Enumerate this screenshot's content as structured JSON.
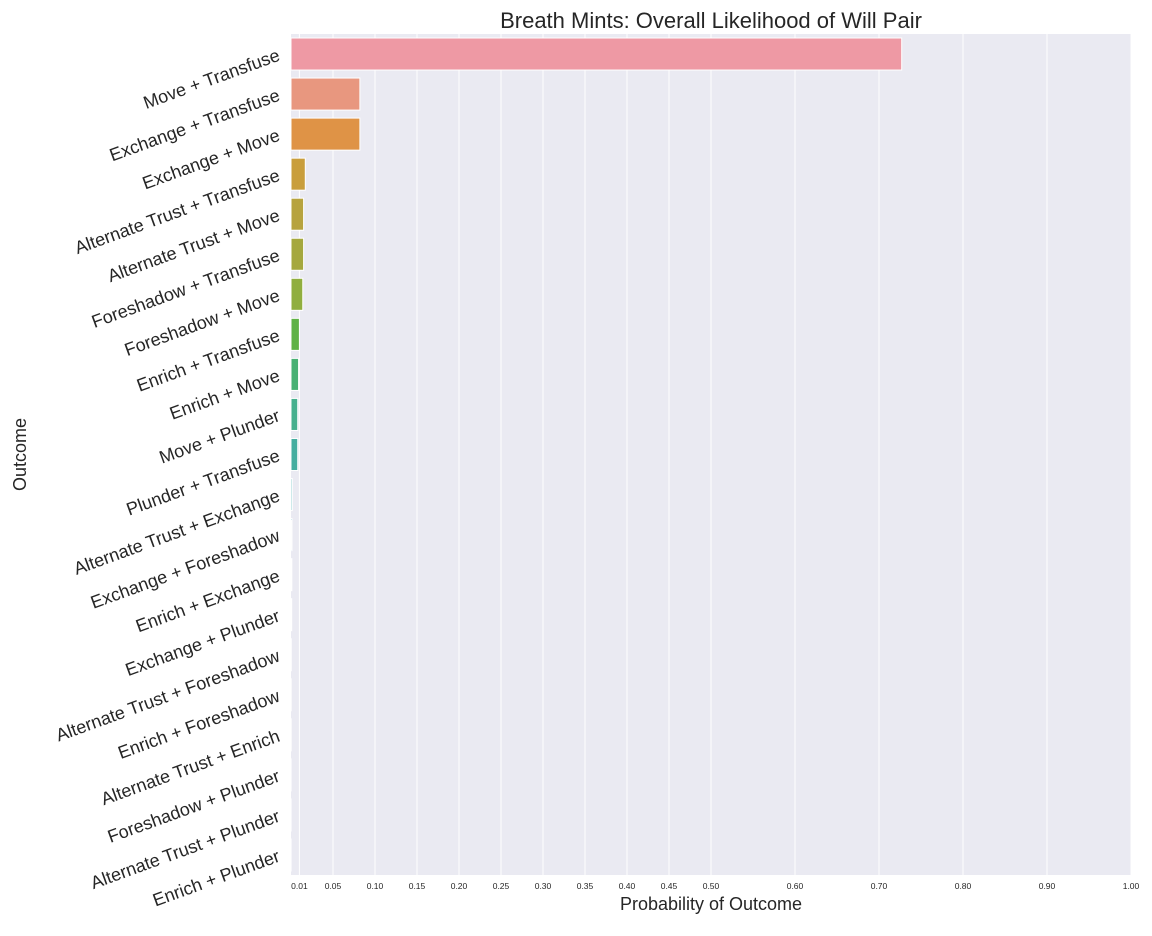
{
  "chart_data": {
    "type": "bar",
    "orientation": "horizontal",
    "title": "Breath Mints: Overall Likelihood of Will Pair",
    "xlabel": "Probability of Outcome",
    "ylabel": "Outcome",
    "xlim": [
      0,
      1.0
    ],
    "xticks": [
      0.01,
      0.05,
      0.1,
      0.15,
      0.2,
      0.25,
      0.3,
      0.35,
      0.4,
      0.45,
      0.5,
      0.6,
      0.7,
      0.8,
      0.9,
      1.0
    ],
    "xtick_labels": [
      "0.01",
      "0.05",
      "0.10",
      "0.15",
      "0.20",
      "0.25",
      "0.30",
      "0.35",
      "0.40",
      "0.45",
      "0.50",
      "0.60",
      "0.70",
      "0.80",
      "0.90",
      "1.00"
    ],
    "grid": true,
    "background_color": "#eaeaf2",
    "categories": [
      "Move + Transfuse",
      "Exchange + Transfuse",
      "Exchange + Move",
      "Alternate Trust + Transfuse",
      "Alternate Trust + Move",
      "Foreshadow + Transfuse",
      "Foreshadow + Move",
      "Enrich + Transfuse",
      "Enrich + Move",
      "Move + Plunder",
      "Plunder + Transfuse",
      "Alternate Trust + Exchange",
      "Exchange + Foreshadow",
      "Enrich + Exchange",
      "Exchange + Plunder",
      "Alternate Trust + Foreshadow",
      "Enrich + Foreshadow",
      "Alternate Trust + Enrich",
      "Foreshadow + Plunder",
      "Alternate Trust + Plunder",
      "Enrich + Plunder"
    ],
    "values": [
      0.727,
      0.082,
      0.082,
      0.017,
      0.015,
      0.015,
      0.014,
      0.01,
      0.009,
      0.008,
      0.008,
      0.0015,
      0.0012,
      0.001,
      0.0008,
      0.0003,
      0.0002,
      0.0002,
      0.0001,
      0.0001,
      0.0001
    ],
    "colors": [
      "#ee99a4",
      "#e8977f",
      "#df9346",
      "#c99e3c",
      "#b7a33e",
      "#a5a83e",
      "#90ae3f",
      "#5fb246",
      "#49b174",
      "#47b08e",
      "#46aea0",
      "#44aeb2",
      "#45aec6",
      "#4aaedd",
      "#6aacf0",
      "#93a6f5",
      "#b79bf2",
      "#d38ff0",
      "#e888e6",
      "#f187d0",
      "#f390b6"
    ]
  }
}
